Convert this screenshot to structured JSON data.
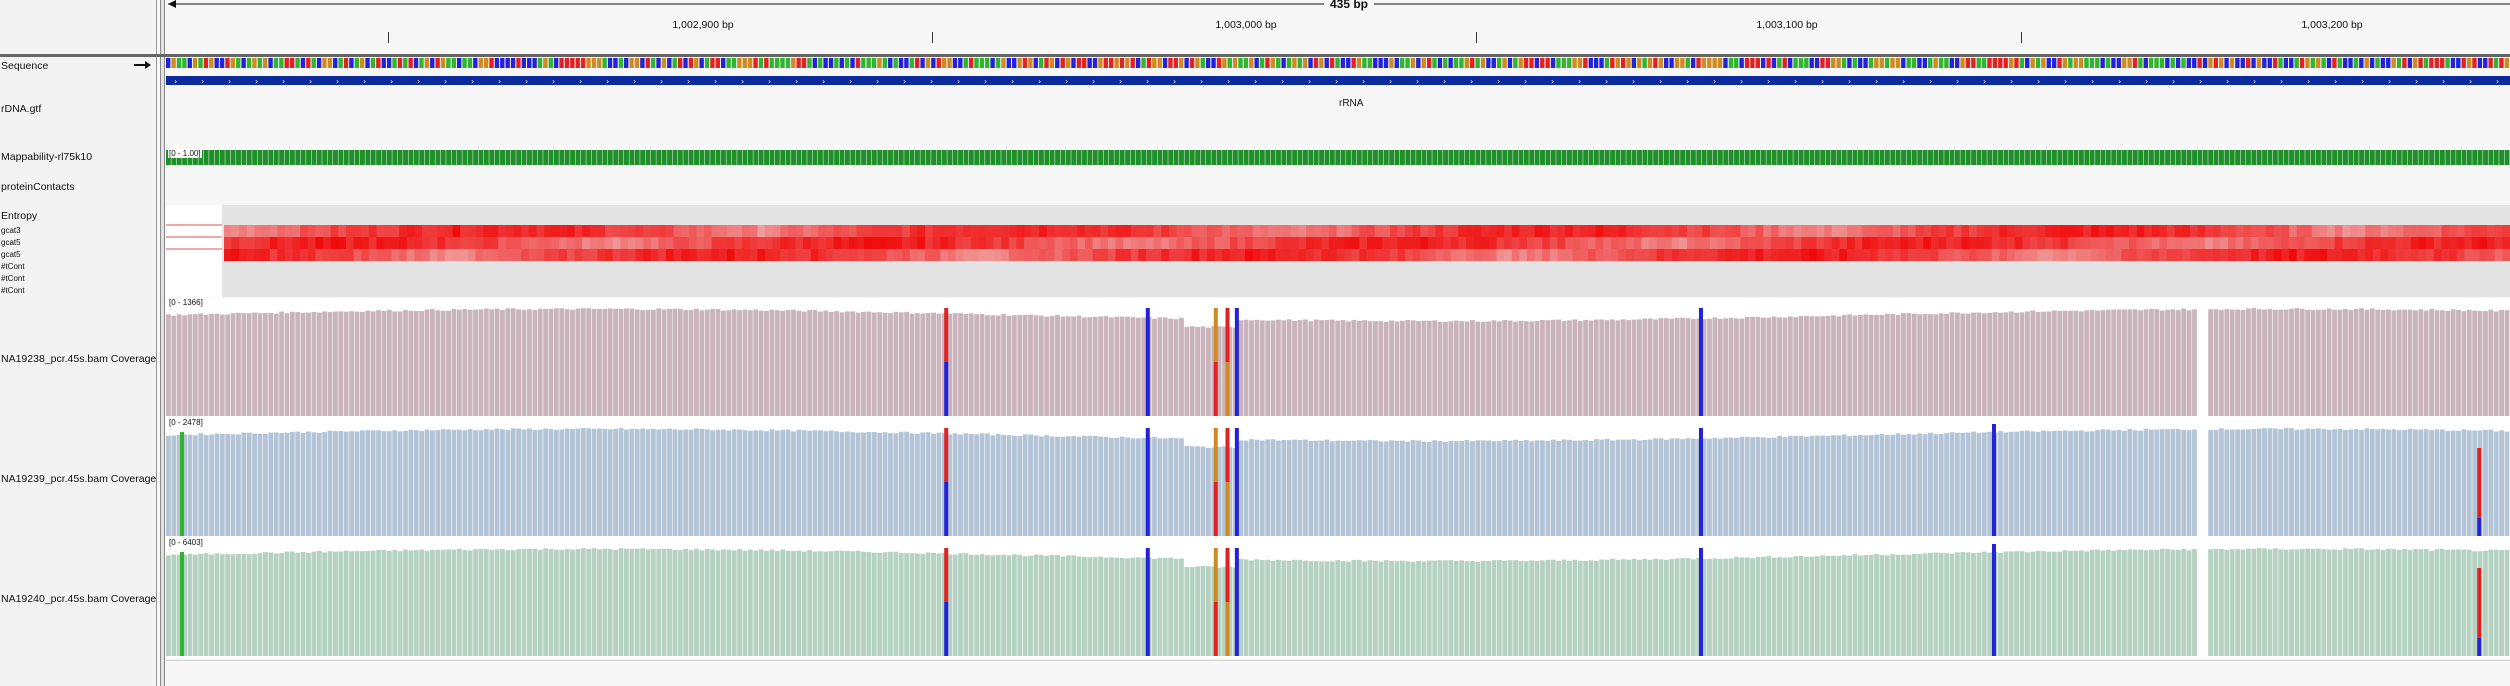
{
  "ruler": {
    "span_label": "435 bp",
    "ticks": [
      {
        "label": "1,002,900 bp"
      },
      {
        "label": "1,003,000 bp"
      },
      {
        "label": "1,003,100 bp"
      },
      {
        "label": "1,003,200 bp"
      }
    ]
  },
  "tracks": {
    "sequence": {
      "label": "Sequence",
      "arrow_icon": "arrow-right-icon"
    },
    "gtf": {
      "label": "rDNA.gtf",
      "feature_label": "rRNA",
      "strand": "+"
    },
    "mappability": {
      "label": "Mappability-rl75k10",
      "range": "[0 - 1.00]"
    },
    "protein_contacts": {
      "label": "proteinContacts"
    },
    "entropy": {
      "label": "Entropy",
      "sublabels": [
        "gcat3",
        "gcat5",
        "gcat5",
        "#tCont",
        "#tCont",
        "#tCont"
      ]
    },
    "coverage": [
      {
        "label": "NA19238_pcr.45s.bam Coverage",
        "range": "[0 - 1366]",
        "color": "#c9b4bb"
      },
      {
        "label": "NA19239_pcr.45s.bam Coverage",
        "range": "[0 - 2478]",
        "color": "#b3c4d6"
      },
      {
        "label": "NA19240_pcr.45s.bam Coverage",
        "range": "[0 - 6403]",
        "color": "#b5d1c1"
      }
    ]
  },
  "colors": {
    "base_A": "#2fb52f",
    "base_C": "#2222dd",
    "base_G": "#d08a22",
    "base_T": "#e22222",
    "gtf_feature": "#0b2a9c",
    "mappability": "#1f8f2a"
  }
}
